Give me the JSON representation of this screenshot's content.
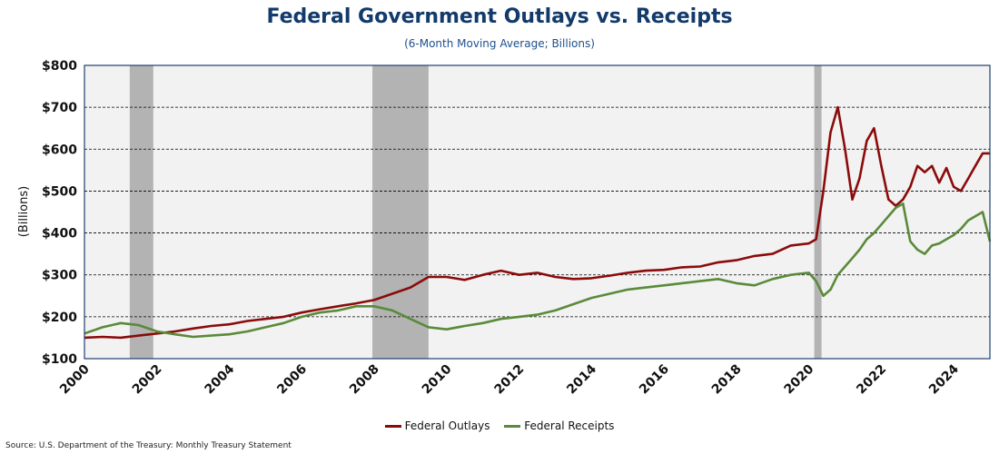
{
  "colors": {
    "title": "#123a6b",
    "outlays": "#8b0b0b",
    "receipts": "#5a8a3a",
    "recession": "#b3b3b3",
    "plot_bg": "#f2f2f2"
  },
  "chart_data": {
    "type": "line",
    "title": "Federal Government Outlays vs. Receipts",
    "subtitle": "(6-Month Moving Average; Billions)",
    "ylabel": "(Billions)",
    "xlabel": "",
    "xlim": [
      2000,
      2025
    ],
    "ylim": [
      100,
      800
    ],
    "x_ticks": [
      "2000",
      "2002",
      "2004",
      "2006",
      "2008",
      "2010",
      "2012",
      "2014",
      "2016",
      "2018",
      "2020",
      "2022",
      "2024"
    ],
    "y_ticks": [
      "$100",
      "$200",
      "$300",
      "$400",
      "$500",
      "$600",
      "$700",
      "$800"
    ],
    "grid": "horizontal dashed",
    "legend_position": "bottom",
    "recession_periods": [
      [
        2001.25,
        2001.9
      ],
      [
        2007.95,
        2009.5
      ],
      [
        2020.15,
        2020.35
      ]
    ],
    "series": [
      {
        "name": "Federal Outlays",
        "color": "#8b0b0b",
        "x": [
          2000,
          2000.5,
          2001,
          2001.5,
          2002,
          2002.5,
          2003,
          2003.5,
          2004,
          2004.5,
          2005,
          2005.5,
          2006,
          2006.5,
          2007,
          2007.5,
          2008,
          2008.5,
          2009,
          2009.5,
          2010,
          2010.5,
          2011,
          2011.5,
          2012,
          2012.5,
          2013,
          2013.5,
          2014,
          2014.5,
          2015,
          2015.5,
          2016,
          2016.5,
          2017,
          2017.5,
          2018,
          2018.5,
          2019,
          2019.5,
          2020,
          2020.2,
          2020.4,
          2020.6,
          2020.8,
          2021,
          2021.2,
          2021.4,
          2021.6,
          2021.8,
          2022,
          2022.2,
          2022.4,
          2022.6,
          2022.8,
          2023,
          2023.2,
          2023.4,
          2023.6,
          2023.8,
          2024,
          2024.2,
          2024.4,
          2024.6,
          2024.8,
          2025
        ],
        "values": [
          150,
          152,
          150,
          155,
          160,
          165,
          172,
          178,
          182,
          190,
          195,
          200,
          210,
          218,
          225,
          232,
          240,
          255,
          270,
          295,
          295,
          288,
          300,
          310,
          300,
          305,
          295,
          290,
          292,
          298,
          305,
          310,
          312,
          318,
          320,
          330,
          335,
          345,
          350,
          370,
          375,
          385,
          500,
          640,
          700,
          600,
          480,
          530,
          620,
          650,
          560,
          480,
          465,
          480,
          510,
          560,
          545,
          560,
          520,
          555,
          510,
          500,
          530,
          560,
          590,
          590
        ]
      },
      {
        "name": "Federal Receipts",
        "color": "#5a8a3a",
        "x": [
          2000,
          2000.5,
          2001,
          2001.5,
          2002,
          2002.5,
          2003,
          2003.5,
          2004,
          2004.5,
          2005,
          2005.5,
          2006,
          2006.5,
          2007,
          2007.5,
          2008,
          2008.5,
          2009,
          2009.5,
          2010,
          2010.5,
          2011,
          2011.5,
          2012,
          2012.5,
          2013,
          2013.5,
          2014,
          2014.5,
          2015,
          2015.5,
          2016,
          2016.5,
          2017,
          2017.5,
          2018,
          2018.5,
          2019,
          2019.5,
          2020,
          2020.2,
          2020.4,
          2020.6,
          2020.8,
          2021,
          2021.2,
          2021.4,
          2021.6,
          2021.8,
          2022,
          2022.2,
          2022.4,
          2022.6,
          2022.8,
          2023,
          2023.2,
          2023.4,
          2023.6,
          2023.8,
          2024,
          2024.2,
          2024.4,
          2024.6,
          2024.8,
          2025
        ],
        "values": [
          160,
          175,
          185,
          180,
          165,
          158,
          152,
          155,
          158,
          165,
          175,
          185,
          200,
          210,
          215,
          225,
          225,
          215,
          195,
          175,
          170,
          178,
          185,
          195,
          200,
          205,
          215,
          230,
          245,
          255,
          265,
          270,
          275,
          280,
          285,
          290,
          280,
          275,
          290,
          300,
          305,
          285,
          250,
          265,
          300,
          320,
          340,
          360,
          385,
          400,
          420,
          440,
          460,
          470,
          380,
          360,
          350,
          370,
          375,
          385,
          395,
          410,
          430,
          440,
          450,
          380
        ]
      }
    ]
  },
  "source": "Source: U.S. Department of the Treasury: Monthly Treasury Statement"
}
